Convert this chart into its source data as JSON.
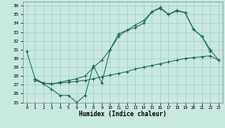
{
  "xlabel": "Humidex (Indice chaleur)",
  "xlim": [
    -0.5,
    23.5
  ],
  "ylim": [
    25,
    36.5
  ],
  "yticks": [
    25,
    26,
    27,
    28,
    29,
    30,
    31,
    32,
    33,
    34,
    35,
    36
  ],
  "xticks": [
    0,
    1,
    2,
    3,
    4,
    5,
    6,
    7,
    8,
    9,
    10,
    11,
    12,
    13,
    14,
    15,
    16,
    17,
    18,
    19,
    20,
    21,
    22,
    23
  ],
  "bg_color": "#c8e8e0",
  "line_color": "#1a6b5a",
  "line1_x": [
    0,
    1,
    2,
    3,
    4,
    5,
    6,
    7,
    8,
    9,
    10,
    11,
    12,
    13,
    14,
    15,
    16,
    17,
    18,
    19,
    20,
    21,
    22
  ],
  "line1_y": [
    30.8,
    27.7,
    27.1,
    26.5,
    25.8,
    25.8,
    25.0,
    25.8,
    29.2,
    27.2,
    31.0,
    32.8,
    33.2,
    33.5,
    34.0,
    35.3,
    35.7,
    35.0,
    35.4,
    35.2,
    33.3,
    32.5,
    30.8
  ],
  "line2_x": [
    1,
    2,
    3,
    4,
    5,
    6,
    7,
    8,
    9,
    10,
    11,
    12,
    13,
    14,
    15,
    16,
    17,
    18,
    19,
    20,
    21,
    22,
    23
  ],
  "line2_y": [
    27.7,
    27.2,
    27.1,
    27.3,
    27.5,
    27.7,
    28.0,
    29.0,
    29.8,
    31.0,
    32.5,
    33.2,
    33.8,
    34.3,
    35.3,
    35.8,
    35.0,
    35.5,
    35.2,
    33.3,
    32.5,
    31.0,
    29.8
  ],
  "line3_x": [
    1,
    2,
    3,
    4,
    5,
    6,
    7,
    8,
    9,
    10,
    11,
    12,
    13,
    14,
    15,
    16,
    17,
    18,
    19,
    20,
    21,
    22,
    23
  ],
  "line3_y": [
    27.5,
    27.2,
    27.1,
    27.2,
    27.3,
    27.4,
    27.5,
    27.7,
    27.9,
    28.1,
    28.3,
    28.5,
    28.8,
    29.0,
    29.2,
    29.4,
    29.6,
    29.8,
    30.0,
    30.1,
    30.2,
    30.3,
    29.8
  ],
  "xlabel_fontsize": 5.5,
  "tick_fontsize": 4.5
}
